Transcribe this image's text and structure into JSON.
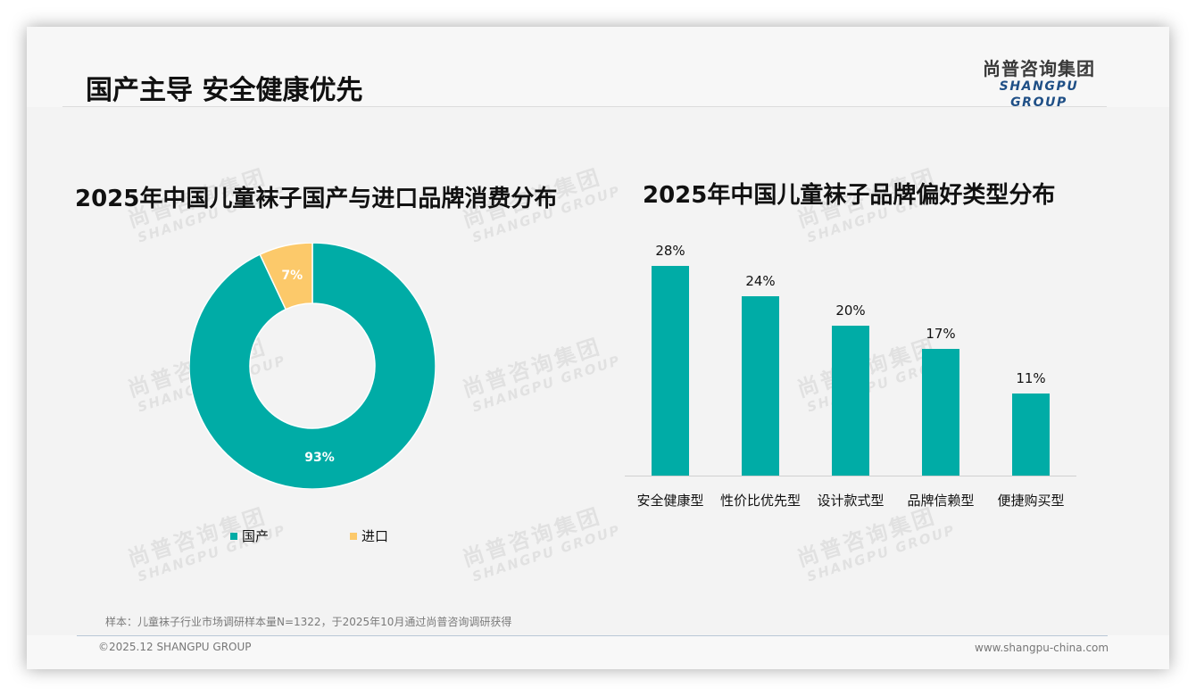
{
  "page": {
    "title": "国产主导 安全健康优先",
    "logo": {
      "cn": "尚普咨询集团",
      "en": "SHANGPU GROUP"
    },
    "watermark": {
      "cn": "尚普咨询集团",
      "en": "SHANGPU GROUP"
    },
    "note": "样本：儿童袜子行业市场调研样本量N=1322，于2025年10月通过尚普咨询调研获得",
    "copyright": "©2025.12 SHANGPU GROUP",
    "website": "www.shangpu-china.com"
  },
  "colors": {
    "teal": "#00aca6",
    "yellow": "#fcc96a",
    "logo_blue": "#1f4f86"
  },
  "chart_data": [
    {
      "type": "pie",
      "variant": "donut",
      "title": "2025年中国儿童袜子国产与进口品牌消费分布",
      "categories": [
        "国产",
        "进口"
      ],
      "values": [
        93,
        7
      ],
      "labels": [
        "93%",
        "7%"
      ],
      "colors": [
        "#00aca6",
        "#fcc96a"
      ],
      "legend_position": "bottom"
    },
    {
      "type": "bar",
      "title": "2025年中国儿童袜子品牌偏好类型分布",
      "categories": [
        "安全健康型",
        "性价比优先型",
        "设计款式型",
        "品牌信赖型",
        "便捷购买型"
      ],
      "values": [
        28,
        24,
        20,
        17,
        11
      ],
      "labels": [
        "28%",
        "24%",
        "20%",
        "17%",
        "11%"
      ],
      "xlabel": "",
      "ylabel": "",
      "ylim": [
        0,
        30
      ],
      "grid": false,
      "color": "#00aca6"
    }
  ]
}
